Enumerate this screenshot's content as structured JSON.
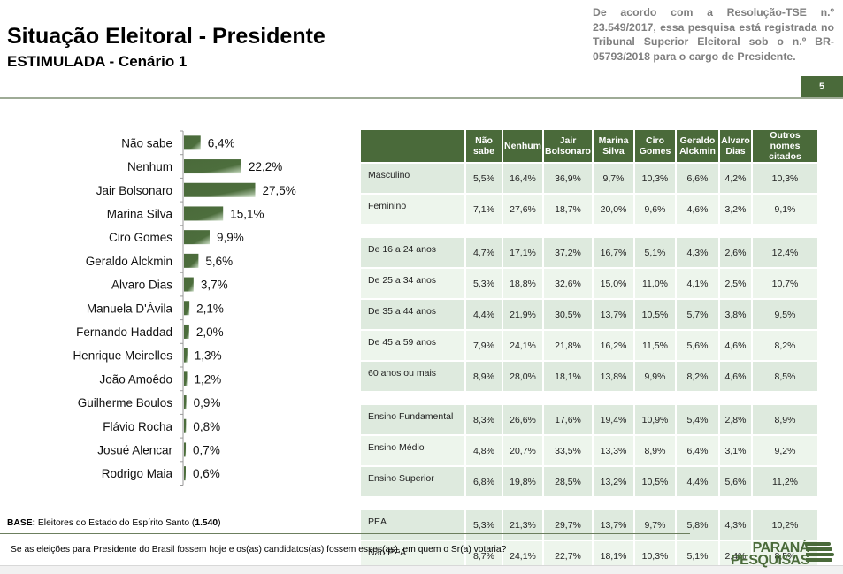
{
  "header": {
    "title": "Situação Eleitoral - Presidente",
    "subtitle": "ESTIMULADA - Cenário 1",
    "notice": "De acordo com a Resolução-TSE n.º 23.549/2017, essa pesquisa está registrada no Tribunal Superior Eleitoral sob o n.º BR-05793/2018 para o cargo de Presidente.",
    "page_number": "5"
  },
  "colors": {
    "brand_green": "#4a6a3a",
    "row_odd": "#deeade",
    "row_even": "#edf5ec",
    "notice_gray": "#7f7f7f"
  },
  "chart_data": {
    "type": "bar",
    "orientation": "horizontal",
    "title": "",
    "xlabel": "",
    "ylabel": "",
    "categories": [
      "Não sabe",
      "Nenhum",
      "Jair Bolsonaro",
      "Marina Silva",
      "Ciro Gomes",
      "Geraldo Alckmin",
      "Alvaro Dias",
      "Manuela D'Ávila",
      "Fernando Haddad",
      "Henrique Meirelles",
      "João Amoêdo",
      "Guilherme Boulos",
      "Flávio Rocha",
      "Josué Alencar",
      "Rodrigo Maia"
    ],
    "values": [
      6.4,
      22.2,
      27.5,
      15.1,
      9.9,
      5.6,
      3.7,
      2.1,
      2.0,
      1.3,
      1.2,
      0.9,
      0.8,
      0.7,
      0.6
    ],
    "value_labels": [
      "6,4%",
      "22,2%",
      "27,5%",
      "15,1%",
      "9,9%",
      "5,6%",
      "3,7%",
      "2,1%",
      "2,0%",
      "1,3%",
      "1,2%",
      "0,9%",
      "0,8%",
      "0,7%",
      "0,6%"
    ],
    "unit": "%",
    "xlim": [
      0,
      30
    ],
    "grid": false,
    "legend": "none"
  },
  "table": {
    "corner": "",
    "columns": [
      "Não sabe",
      "Nenhum",
      "Jair Bolsonaro",
      "Marina Silva",
      "Ciro Gomes",
      "Geraldo Alckmin",
      "Alvaro Dias",
      "Outros nomes citados"
    ],
    "groups": [
      {
        "rows": [
          {
            "label": "Masculino",
            "values": [
              "5,5%",
              "16,4%",
              "36,9%",
              "9,7%",
              "10,3%",
              "6,6%",
              "4,2%",
              "10,3%"
            ]
          },
          {
            "label": "Feminino",
            "values": [
              "7,1%",
              "27,6%",
              "18,7%",
              "20,0%",
              "9,6%",
              "4,6%",
              "3,2%",
              "9,1%"
            ]
          }
        ]
      },
      {
        "rows": [
          {
            "label": "De 16 a 24 anos",
            "values": [
              "4,7%",
              "17,1%",
              "37,2%",
              "16,7%",
              "5,1%",
              "4,3%",
              "2,6%",
              "12,4%"
            ]
          },
          {
            "label": "De 25 a 34 anos",
            "values": [
              "5,3%",
              "18,8%",
              "32,6%",
              "15,0%",
              "11,0%",
              "4,1%",
              "2,5%",
              "10,7%"
            ]
          },
          {
            "label": "De 35 a 44 anos",
            "values": [
              "4,4%",
              "21,9%",
              "30,5%",
              "13,7%",
              "10,5%",
              "5,7%",
              "3,8%",
              "9,5%"
            ]
          },
          {
            "label": "De 45 a 59 anos",
            "values": [
              "7,9%",
              "24,1%",
              "21,8%",
              "16,2%",
              "11,5%",
              "5,6%",
              "4,6%",
              "8,2%"
            ]
          },
          {
            "label": "60 anos ou mais",
            "values": [
              "8,9%",
              "28,0%",
              "18,1%",
              "13,8%",
              "9,9%",
              "8,2%",
              "4,6%",
              "8,5%"
            ]
          }
        ]
      },
      {
        "rows": [
          {
            "label": "Ensino Fundamental",
            "values": [
              "8,3%",
              "26,6%",
              "17,6%",
              "19,4%",
              "10,9%",
              "5,4%",
              "2,8%",
              "8,9%"
            ]
          },
          {
            "label": "Ensino Médio",
            "values": [
              "4,8%",
              "20,7%",
              "33,5%",
              "13,3%",
              "8,9%",
              "6,4%",
              "3,1%",
              "9,2%"
            ]
          },
          {
            "label": "Ensino Superior",
            "values": [
              "6,8%",
              "19,8%",
              "28,5%",
              "13,2%",
              "10,5%",
              "4,4%",
              "5,6%",
              "11,2%"
            ]
          }
        ]
      },
      {
        "rows": [
          {
            "label": "PEA",
            "values": [
              "5,3%",
              "21,3%",
              "29,7%",
              "13,7%",
              "9,7%",
              "5,8%",
              "4,3%",
              "10,2%"
            ]
          },
          {
            "label": "Não PEA",
            "values": [
              "8,7%",
              "24,1%",
              "22,7%",
              "18,1%",
              "10,3%",
              "5,1%",
              "2,4%",
              "8,5%"
            ]
          }
        ]
      }
    ]
  },
  "footer": {
    "base_label": "BASE:",
    "base_text": " Eleitores do Estado do Espírito Santo (",
    "base_count": "1.540",
    "base_close": ")",
    "question": "Se as eleições para Presidente do Brasil fossem hoje e os(as) candidatos(as) fossem esses(as), em quem o Sr(a) votaria?",
    "logo_line1": "PARANÁ",
    "logo_line2": "PESQUISAS"
  }
}
